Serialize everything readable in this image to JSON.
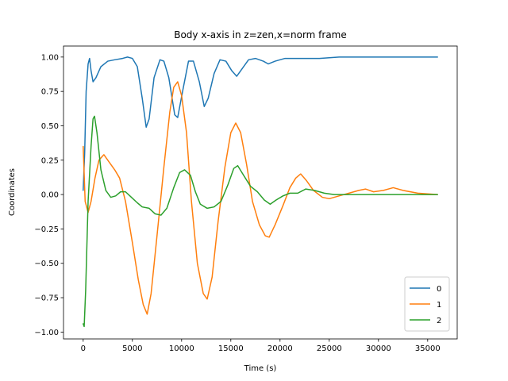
{
  "chart_data": {
    "type": "line",
    "title": "Body x-axis in z=zen,x=norm frame",
    "xlabel": "Time (s)",
    "ylabel": "Coordinates",
    "xlim": [
      -2000,
      38000
    ],
    "ylim": [
      -1.05,
      1.08
    ],
    "xticks": [
      0,
      5000,
      10000,
      15000,
      20000,
      25000,
      30000,
      35000
    ],
    "xtick_labels": [
      "0",
      "5000",
      "10000",
      "15000",
      "20000",
      "25000",
      "30000",
      "35000"
    ],
    "yticks": [
      -1.0,
      -0.75,
      -0.5,
      -0.25,
      0.0,
      0.25,
      0.5,
      0.75,
      1.0
    ],
    "ytick_labels": [
      "−1.00",
      "−0.75",
      "−0.50",
      "−0.25",
      "0.00",
      "0.25",
      "0.50",
      "0.75",
      "1.00"
    ],
    "grid": false,
    "legend_position": "lower-right",
    "series": [
      {
        "name": "0",
        "color": "#1f77b4",
        "points": [
          [
            0,
            0.03
          ],
          [
            150,
            0.3
          ],
          [
            300,
            0.75
          ],
          [
            500,
            0.95
          ],
          [
            650,
            0.99
          ],
          [
            800,
            0.9
          ],
          [
            1000,
            0.82
          ],
          [
            1300,
            0.85
          ],
          [
            1800,
            0.93
          ],
          [
            2500,
            0.97
          ],
          [
            3200,
            0.98
          ],
          [
            4000,
            0.99
          ],
          [
            4500,
            1.0
          ],
          [
            5000,
            0.99
          ],
          [
            5500,
            0.93
          ],
          [
            6000,
            0.7
          ],
          [
            6400,
            0.49
          ],
          [
            6700,
            0.55
          ],
          [
            7200,
            0.85
          ],
          [
            7800,
            0.98
          ],
          [
            8200,
            0.97
          ],
          [
            8700,
            0.85
          ],
          [
            9300,
            0.58
          ],
          [
            9600,
            0.56
          ],
          [
            10100,
            0.75
          ],
          [
            10700,
            0.97
          ],
          [
            11200,
            0.97
          ],
          [
            11800,
            0.82
          ],
          [
            12300,
            0.64
          ],
          [
            12700,
            0.7
          ],
          [
            13300,
            0.88
          ],
          [
            13900,
            0.98
          ],
          [
            14500,
            0.97
          ],
          [
            15100,
            0.9
          ],
          [
            15600,
            0.86
          ],
          [
            16200,
            0.92
          ],
          [
            16800,
            0.98
          ],
          [
            17500,
            0.99
          ],
          [
            18300,
            0.97
          ],
          [
            18800,
            0.95
          ],
          [
            19500,
            0.97
          ],
          [
            20500,
            0.99
          ],
          [
            22000,
            0.99
          ],
          [
            24000,
            0.99
          ],
          [
            26000,
            1.0
          ],
          [
            30000,
            1.0
          ],
          [
            36000,
            1.0
          ]
        ]
      },
      {
        "name": "1",
        "color": "#ff7f0e",
        "points": [
          [
            0,
            0.35
          ],
          [
            200,
            -0.05
          ],
          [
            500,
            -0.13
          ],
          [
            800,
            -0.05
          ],
          [
            1200,
            0.12
          ],
          [
            1600,
            0.25
          ],
          [
            2100,
            0.29
          ],
          [
            2600,
            0.24
          ],
          [
            3200,
            0.18
          ],
          [
            3700,
            0.12
          ],
          [
            4300,
            -0.05
          ],
          [
            5000,
            -0.35
          ],
          [
            5600,
            -0.62
          ],
          [
            6100,
            -0.8
          ],
          [
            6500,
            -0.87
          ],
          [
            6900,
            -0.72
          ],
          [
            7500,
            -0.3
          ],
          [
            8200,
            0.2
          ],
          [
            8800,
            0.6
          ],
          [
            9200,
            0.78
          ],
          [
            9600,
            0.82
          ],
          [
            10000,
            0.72
          ],
          [
            10500,
            0.45
          ],
          [
            11000,
            -0.05
          ],
          [
            11600,
            -0.5
          ],
          [
            12200,
            -0.72
          ],
          [
            12600,
            -0.76
          ],
          [
            13100,
            -0.6
          ],
          [
            13700,
            -0.2
          ],
          [
            14400,
            0.2
          ],
          [
            15000,
            0.45
          ],
          [
            15500,
            0.52
          ],
          [
            16000,
            0.45
          ],
          [
            16600,
            0.22
          ],
          [
            17200,
            -0.05
          ],
          [
            17900,
            -0.22
          ],
          [
            18500,
            -0.3
          ],
          [
            18900,
            -0.31
          ],
          [
            19500,
            -0.22
          ],
          [
            20300,
            -0.08
          ],
          [
            21000,
            0.05
          ],
          [
            21600,
            0.12
          ],
          [
            22100,
            0.15
          ],
          [
            22700,
            0.1
          ],
          [
            23400,
            0.03
          ],
          [
            24300,
            -0.02
          ],
          [
            25000,
            -0.03
          ],
          [
            26000,
            -0.01
          ],
          [
            27000,
            0.01
          ],
          [
            28000,
            0.03
          ],
          [
            28700,
            0.04
          ],
          [
            29500,
            0.02
          ],
          [
            30500,
            0.03
          ],
          [
            31500,
            0.05
          ],
          [
            32500,
            0.03
          ],
          [
            34000,
            0.01
          ],
          [
            36000,
            0.0
          ]
        ]
      },
      {
        "name": "2",
        "color": "#2ca02c",
        "points": [
          [
            0,
            -0.94
          ],
          [
            100,
            -0.96
          ],
          [
            250,
            -0.7
          ],
          [
            500,
            -0.05
          ],
          [
            800,
            0.35
          ],
          [
            1000,
            0.55
          ],
          [
            1150,
            0.57
          ],
          [
            1400,
            0.45
          ],
          [
            1800,
            0.18
          ],
          [
            2300,
            0.03
          ],
          [
            2800,
            -0.02
          ],
          [
            3300,
            -0.01
          ],
          [
            3800,
            0.02
          ],
          [
            4300,
            0.02
          ],
          [
            4900,
            -0.02
          ],
          [
            5500,
            -0.06
          ],
          [
            6000,
            -0.09
          ],
          [
            6700,
            -0.1
          ],
          [
            7300,
            -0.14
          ],
          [
            7900,
            -0.15
          ],
          [
            8500,
            -0.1
          ],
          [
            9200,
            0.05
          ],
          [
            9800,
            0.16
          ],
          [
            10300,
            0.18
          ],
          [
            10900,
            0.14
          ],
          [
            11400,
            0.02
          ],
          [
            11900,
            -0.07
          ],
          [
            12600,
            -0.1
          ],
          [
            13300,
            -0.09
          ],
          [
            14000,
            -0.05
          ],
          [
            14700,
            0.07
          ],
          [
            15300,
            0.19
          ],
          [
            15700,
            0.21
          ],
          [
            16300,
            0.14
          ],
          [
            17000,
            0.06
          ],
          [
            17700,
            0.02
          ],
          [
            18400,
            -0.04
          ],
          [
            19000,
            -0.07
          ],
          [
            19600,
            -0.04
          ],
          [
            20300,
            -0.01
          ],
          [
            21000,
            0.01
          ],
          [
            21800,
            0.01
          ],
          [
            22600,
            0.04
          ],
          [
            23500,
            0.03
          ],
          [
            24500,
            0.01
          ],
          [
            25500,
            0.0
          ],
          [
            27000,
            0.0
          ],
          [
            29000,
            0.0
          ],
          [
            32000,
            0.0
          ],
          [
            36000,
            0.0
          ]
        ]
      }
    ]
  }
}
